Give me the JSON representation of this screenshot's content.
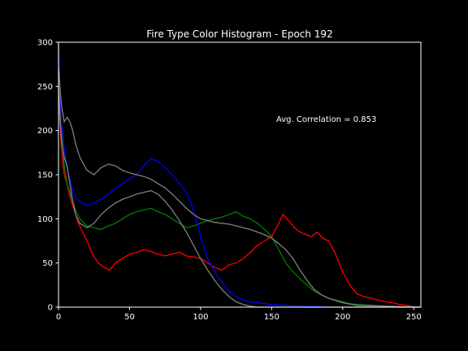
{
  "chart_data": {
    "type": "line",
    "title": "Fire Type Color Histogram - Epoch 192",
    "xlabel": "",
    "ylabel": "",
    "xlim": [
      0,
      255
    ],
    "ylim": [
      0,
      300
    ],
    "x_ticks": [
      0,
      50,
      100,
      150,
      200,
      250
    ],
    "y_ticks": [
      0,
      50,
      100,
      150,
      200,
      250,
      300
    ],
    "grid": false,
    "legend": "none",
    "annotation": "Avg. Correlation = 0.853",
    "colors": {
      "background": "#000000",
      "axes": "#ffffff",
      "red": "#ff0000",
      "green": "#008000",
      "blue": "#0000ff",
      "gray": "#808080"
    },
    "series": [
      {
        "color": "red",
        "x": [
          0,
          2,
          4,
          6,
          8,
          10,
          12,
          14,
          17,
          20,
          24,
          28,
          32,
          36,
          40,
          45,
          50,
          55,
          60,
          65,
          70,
          75,
          80,
          85,
          90,
          95,
          100,
          105,
          110,
          115,
          120,
          125,
          130,
          135,
          140,
          145,
          150,
          155,
          158,
          162,
          166,
          170,
          174,
          178,
          182,
          186,
          190,
          195,
          200,
          205,
          210,
          215,
          220,
          225,
          230,
          235,
          240,
          245,
          250,
          255
        ],
        "y": [
          240,
          180,
          150,
          140,
          125,
          115,
          105,
          95,
          85,
          75,
          60,
          50,
          45,
          42,
          50,
          55,
          60,
          62,
          65,
          63,
          60,
          58,
          60,
          62,
          58,
          57,
          55,
          50,
          45,
          42,
          48,
          50,
          55,
          62,
          70,
          75,
          80,
          95,
          105,
          98,
          90,
          85,
          82,
          80,
          85,
          78,
          75,
          60,
          40,
          25,
          15,
          12,
          10,
          8,
          6,
          5,
          3,
          2,
          0,
          0
        ]
      },
      {
        "color": "green",
        "x": [
          0,
          2,
          4,
          6,
          8,
          10,
          12,
          15,
          20,
          25,
          30,
          35,
          40,
          45,
          50,
          55,
          60,
          65,
          70,
          75,
          80,
          85,
          90,
          95,
          100,
          105,
          110,
          115,
          120,
          125,
          130,
          135,
          140,
          145,
          150,
          155,
          160,
          165,
          170,
          175,
          180,
          185,
          190,
          195,
          200,
          205,
          210,
          220,
          230,
          240,
          255
        ],
        "y": [
          300,
          200,
          160,
          140,
          130,
          120,
          110,
          100,
          92,
          90,
          88,
          92,
          95,
          100,
          105,
          108,
          110,
          112,
          108,
          105,
          100,
          95,
          90,
          92,
          95,
          98,
          100,
          102,
          105,
          108,
          103,
          100,
          95,
          88,
          80,
          65,
          50,
          40,
          32,
          25,
          18,
          14,
          10,
          8,
          6,
          4,
          3,
          2,
          1,
          0,
          0
        ]
      },
      {
        "color": "blue",
        "x": [
          0,
          2,
          4,
          6,
          8,
          10,
          12,
          15,
          20,
          25,
          30,
          35,
          40,
          45,
          50,
          55,
          60,
          65,
          70,
          75,
          80,
          85,
          90,
          95,
          100,
          105,
          110,
          115,
          120,
          125,
          130,
          135,
          140,
          145,
          150,
          160,
          170,
          180,
          190,
          200,
          255
        ],
        "y": [
          290,
          210,
          180,
          160,
          145,
          130,
          125,
          120,
          115,
          118,
          122,
          128,
          135,
          140,
          145,
          150,
          160,
          168,
          165,
          158,
          150,
          140,
          130,
          110,
          80,
          55,
          40,
          28,
          18,
          12,
          8,
          6,
          5,
          4,
          3,
          2,
          1,
          1,
          0,
          0,
          0
        ]
      },
      {
        "color": "gray",
        "x": [
          0,
          2,
          4,
          6,
          8,
          10,
          12,
          15,
          20,
          25,
          30,
          35,
          40,
          45,
          50,
          55,
          60,
          65,
          70,
          75,
          80,
          85,
          90,
          95,
          100,
          105,
          110,
          115,
          120,
          125,
          130,
          135,
          140,
          145,
          150,
          155,
          160,
          165,
          170,
          175,
          180,
          185,
          190,
          200,
          210,
          255
        ],
        "y": [
          270,
          230,
          210,
          215,
          210,
          200,
          185,
          170,
          155,
          150,
          158,
          162,
          160,
          155,
          152,
          150,
          148,
          145,
          140,
          135,
          128,
          120,
          112,
          105,
          100,
          98,
          96,
          95,
          94,
          92,
          90,
          88,
          85,
          82,
          78,
          72,
          65,
          55,
          42,
          30,
          20,
          14,
          10,
          5,
          2,
          0
        ]
      },
      {
        "color": "gray",
        "x": [
          0,
          2,
          4,
          6,
          8,
          10,
          12,
          15,
          20,
          25,
          30,
          35,
          40,
          45,
          50,
          55,
          60,
          65,
          70,
          75,
          80,
          85,
          90,
          95,
          100,
          105,
          110,
          115,
          120,
          125,
          130,
          135,
          140,
          145,
          150,
          160,
          255
        ],
        "y": [
          250,
          190,
          170,
          160,
          140,
          120,
          105,
          95,
          90,
          95,
          105,
          112,
          118,
          122,
          125,
          128,
          130,
          132,
          128,
          120,
          110,
          98,
          85,
          70,
          55,
          42,
          30,
          20,
          12,
          6,
          3,
          1,
          0,
          0,
          0,
          0,
          0
        ]
      }
    ]
  }
}
